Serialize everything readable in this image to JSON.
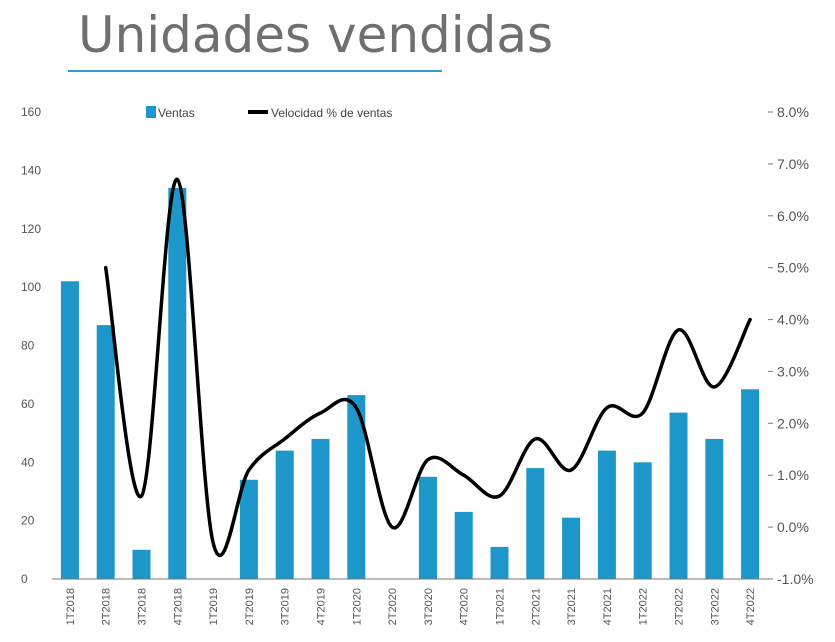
{
  "title": "Unidades vendidas",
  "colors": {
    "bar": "#1d97c9",
    "line": "#000000",
    "title_rule": "#2e9bd3"
  },
  "chart_data": {
    "type": "bar",
    "categories": [
      "1T2018",
      "2T2018",
      "3T2018",
      "4T2018",
      "1T2019",
      "2T2019",
      "3T2019",
      "4T2019",
      "1T2020",
      "2T2020",
      "3T2020",
      "4T2020",
      "1T2021",
      "2T2021",
      "3T2021",
      "4T2021",
      "1T2022",
      "2T2022",
      "3T2022",
      "4T2022"
    ],
    "series": [
      {
        "name": "Ventas",
        "type": "bar",
        "axis": "left",
        "values": [
          102,
          87,
          10,
          134,
          0,
          34,
          44,
          48,
          63,
          0,
          35,
          23,
          11,
          38,
          21,
          44,
          40,
          57,
          48,
          65
        ]
      },
      {
        "name": "Velocidad % de ventas",
        "type": "line",
        "axis": "right",
        "values": [
          null,
          5.0,
          0.6,
          6.7,
          -0.3,
          1.1,
          1.7,
          2.2,
          2.3,
          0.0,
          1.3,
          1.0,
          0.6,
          1.7,
          1.1,
          2.3,
          2.2,
          3.8,
          2.7,
          4.0
        ]
      }
    ],
    "y_left": {
      "min": 0,
      "max": 160,
      "ticks": [
        "0",
        "20",
        "40",
        "60",
        "80",
        "100",
        "120",
        "140",
        "160"
      ]
    },
    "y_right": {
      "min": -1.0,
      "max": 8.0,
      "ticks": [
        "-1.0%",
        "0.0%",
        "1.0%",
        "2.0%",
        "3.0%",
        "4.0%",
        "5.0%",
        "6.0%",
        "7.0%",
        "8.0%"
      ]
    },
    "grid": false,
    "legend_position": "top-left"
  }
}
